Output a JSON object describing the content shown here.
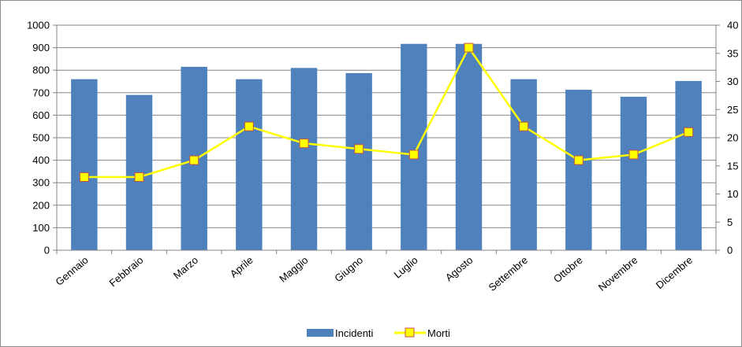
{
  "chart_data": {
    "type": "bar",
    "categories": [
      "Gennaio",
      "Febbraio",
      "Marzo",
      "Aprile",
      "Maggio",
      "Giugno",
      "Luglio",
      "Agosto",
      "Settembre",
      "Ottobre",
      "Novembre",
      "Dicembre"
    ],
    "series": [
      {
        "name": "Incidenti",
        "type": "bar",
        "axis": "left",
        "color": "#4f81bd",
        "values": [
          760,
          690,
          815,
          760,
          810,
          787,
          917,
          917,
          760,
          713,
          682,
          752
        ]
      },
      {
        "name": "Morti",
        "type": "line",
        "axis": "right",
        "color": "#ffff00",
        "marker_border": "#c0504d",
        "values": [
          13,
          13,
          16,
          22,
          19,
          18,
          17,
          36,
          22,
          16,
          17,
          21
        ]
      }
    ],
    "ylim_left": [
      0,
      1000
    ],
    "ylim_right": [
      0,
      40
    ],
    "yticks_left": [
      0,
      100,
      200,
      300,
      400,
      500,
      600,
      700,
      800,
      900,
      1000
    ],
    "yticks_right": [
      0,
      5,
      10,
      15,
      20,
      25,
      30,
      35,
      40
    ],
    "grid": "horizontal",
    "legend_position": "bottom",
    "title": "",
    "xlabel": "",
    "ylabel": ""
  }
}
